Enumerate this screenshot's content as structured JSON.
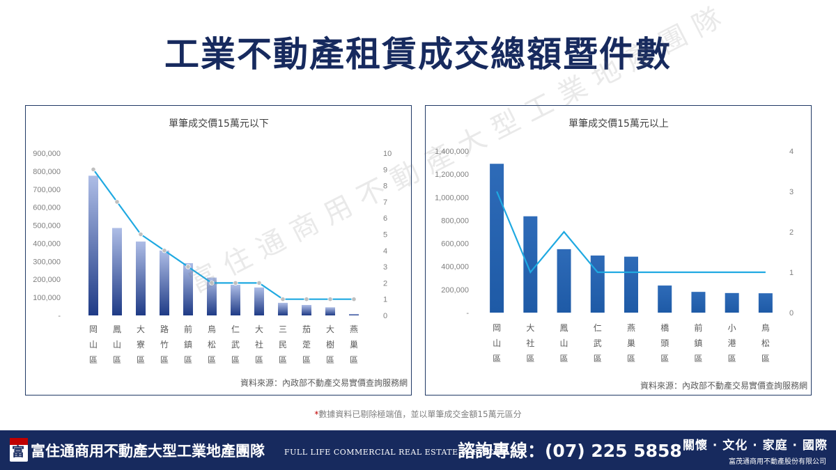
{
  "page": {
    "title": "工業不動產租賃成交總額暨件數",
    "watermark": "富住通商用不動產大型工業地產團隊",
    "footnote_star": "*",
    "footnote": "數據資料已剔除極端值，並以單筆成交金額15萬元區分"
  },
  "footer": {
    "logo_glyph": "富",
    "team_name": "富住通商用不動產大型工業地產團隊",
    "team_name_en": "FULL LIFE COMMERCIAL REAL ESTATE SERVICE",
    "hotline": "諮詢專線：(07) 225 5858",
    "slogan": "關懷 · 文化 · 家庭 · 國際",
    "company": "富茂通商用不動產股份有限公司"
  },
  "colors": {
    "title": "#172a5e",
    "bar_light": "#aebde6",
    "bar_dark": "#1f3b86",
    "bar_right": "#2e6bb8",
    "line": "#1fa9e1",
    "marker": "#bfbfbf",
    "footer_bg": "#172a5e"
  },
  "chart_data": [
    {
      "type": "bar+line",
      "title": "單筆成交價15萬元以下",
      "source": "資料來源：內政部不動產交易實價查詢服務網",
      "categories": [
        "岡山區",
        "鳳山區",
        "大寮區",
        "路竹區",
        "前鎮區",
        "鳥松區",
        "仁武區",
        "大社區",
        "三民區",
        "茄萣區",
        "大樹區",
        "燕巢區"
      ],
      "series": [
        {
          "kind": "bar",
          "axis": "left",
          "values": [
            775000,
            485000,
            410000,
            360000,
            290000,
            210000,
            170000,
            155000,
            70000,
            58000,
            45000,
            8000
          ]
        },
        {
          "kind": "line",
          "axis": "right",
          "values": [
            9,
            7,
            5,
            4,
            3,
            2,
            2,
            2,
            1,
            1,
            1,
            1
          ]
        }
      ],
      "y_left": {
        "min": 0,
        "max": 900000,
        "ticks": [
          "-",
          "100,000",
          "200,000",
          "300,000",
          "400,000",
          "500,000",
          "600,000",
          "700,000",
          "800,000",
          "900,000"
        ]
      },
      "y_right": {
        "min": 0,
        "max": 10,
        "ticks": [
          "0",
          "1",
          "2",
          "3",
          "4",
          "5",
          "6",
          "7",
          "8",
          "9",
          "10"
        ]
      },
      "line_markers": true,
      "grid": false
    },
    {
      "type": "bar+line",
      "title": "單筆成交價15萬元以上",
      "source": "資料來源：內政部不動產交易實價查詢服務網",
      "categories": [
        "岡山區",
        "大社區",
        "鳳山區",
        "仁武區",
        "燕巢區",
        "橋頭區",
        "前鎮區",
        "小港區",
        "鳥松區"
      ],
      "series": [
        {
          "kind": "bar",
          "axis": "left",
          "values": [
            1290000,
            835000,
            550000,
            495000,
            485000,
            235000,
            180000,
            170000,
            168000
          ]
        },
        {
          "kind": "line",
          "axis": "right",
          "values": [
            3,
            1,
            2,
            1,
            1,
            1,
            1,
            1,
            1
          ]
        }
      ],
      "y_left": {
        "min": 0,
        "max": 1400000,
        "ticks": [
          "-",
          "200,000",
          "400,000",
          "600,000",
          "800,000",
          "1,000,000",
          "1,200,000",
          "1,400,000"
        ]
      },
      "y_right": {
        "min": 0,
        "max": 4,
        "ticks": [
          "0",
          "1",
          "2",
          "3",
          "4"
        ]
      },
      "line_markers": false,
      "grid": false
    }
  ]
}
